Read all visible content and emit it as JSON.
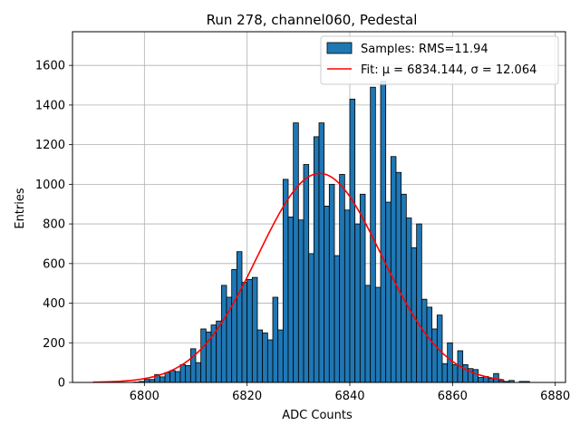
{
  "chart_data": {
    "type": "bar",
    "title": "Run 278, channel060, Pedestal",
    "xlabel": "ADC Counts",
    "ylabel": "Entries",
    "xlim": [
      6786,
      6882
    ],
    "ylim": [
      0,
      1770
    ],
    "xticks": [
      6800,
      6820,
      6840,
      6860,
      6880
    ],
    "yticks": [
      0,
      200,
      400,
      600,
      800,
      1000,
      1200,
      1400,
      1600
    ],
    "grid": true,
    "legend_placement": "top-right",
    "bar_color": "#1f77b4",
    "fit_color": "#ff0000",
    "histogram": {
      "label": "Samples: RMS=11.94",
      "bin_start": 6790,
      "bin_width": 1,
      "counts": [
        0,
        0,
        0,
        0,
        0,
        0,
        0,
        0,
        2,
        5,
        15,
        15,
        40,
        28,
        50,
        60,
        55,
        90,
        85,
        170,
        100,
        270,
        255,
        290,
        310,
        490,
        430,
        570,
        660,
        505,
        520,
        530,
        265,
        250,
        215,
        430,
        265,
        1025,
        835,
        1310,
        820,
        1100,
        650,
        1240,
        1310,
        890,
        1000,
        640,
        1050,
        870,
        1430,
        800,
        950,
        490,
        1490,
        480,
        1520,
        910,
        1140,
        1060,
        950,
        830,
        680,
        800,
        420,
        380,
        270,
        340,
        95,
        200,
        90,
        160,
        90,
        70,
        65,
        25,
        30,
        20,
        45,
        10,
        5,
        10,
        0,
        5,
        5,
        0,
        0,
        0,
        0,
        0
      ]
    },
    "fit": {
      "label": "Fit: μ = 6834.144, σ = 12.064",
      "mu": 6834.144,
      "sigma": 12.064,
      "amplitude": 1055,
      "x_range": [
        6790,
        6870
      ]
    }
  }
}
